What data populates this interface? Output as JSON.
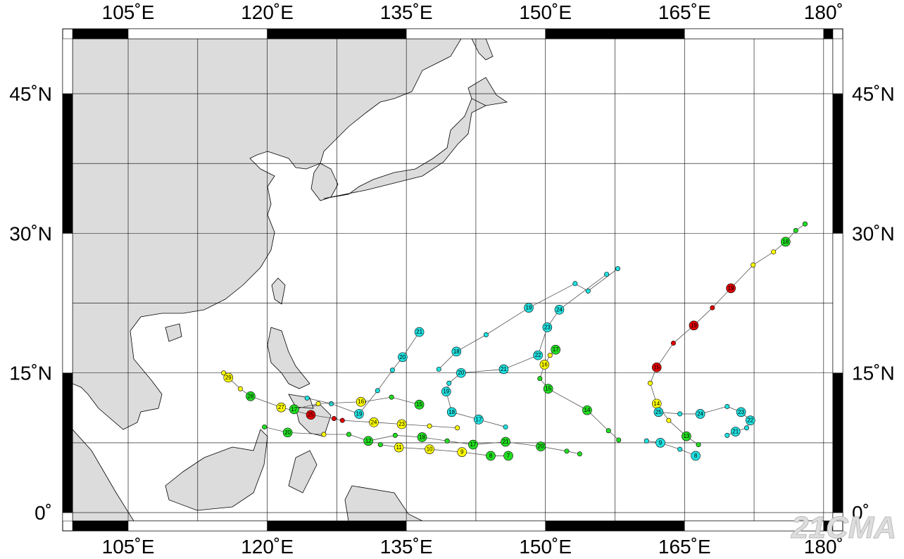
{
  "map": {
    "lon_range": [
      99,
      181
    ],
    "lat_range": [
      -0.9,
      50.9
    ],
    "grid_step": 7.5,
    "lon_ticks": [
      {
        "value": 105,
        "label": "105˚E"
      },
      {
        "value": 120,
        "label": "120˚E"
      },
      {
        "value": 135,
        "label": "135˚E"
      },
      {
        "value": 150,
        "label": "150˚E"
      },
      {
        "value": 165,
        "label": "165˚E"
      },
      {
        "value": 180,
        "label": "180˚"
      }
    ],
    "lat_ticks": [
      {
        "value": 0,
        "label": "0˚"
      },
      {
        "value": 15,
        "label": "15˚N"
      },
      {
        "value": 30,
        "label": "30˚N"
      },
      {
        "value": 45,
        "label": "45˚N"
      }
    ],
    "watermark": "21CMA",
    "colors": {
      "r": "#e00000",
      "y": "#ffff00",
      "g": "#22dd22",
      "c": "#22e0e0"
    }
  },
  "tracks": [
    {
      "points": [
        [
          178.0,
          31.0,
          "g"
        ],
        [
          177.0,
          30.3,
          "g"
        ],
        [
          175.9,
          29.1,
          "g"
        ],
        [
          174.6,
          28.0,
          "y"
        ],
        [
          172.4,
          26.6,
          "y"
        ],
        [
          170.0,
          24.1,
          "r"
        ],
        [
          168.0,
          22.0,
          "r"
        ],
        [
          166.0,
          20.1,
          "r"
        ],
        [
          163.8,
          18.2,
          "r"
        ],
        [
          162.0,
          15.6,
          "r"
        ],
        [
          161.3,
          13.9,
          "y"
        ],
        [
          162.0,
          11.7,
          "y"
        ],
        [
          163.3,
          9.9,
          "y"
        ],
        [
          165.2,
          8.2,
          "g"
        ],
        [
          166.5,
          7.3,
          "g"
        ]
      ],
      "labels": [
        {
          "i": 2,
          "text": "18"
        },
        {
          "i": 5,
          "text": "19"
        },
        {
          "i": 7,
          "text": "19"
        },
        {
          "i": 9,
          "text": "15"
        },
        {
          "i": 11,
          "text": "14"
        },
        {
          "i": 13,
          "text": "13"
        }
      ]
    },
    {
      "points": [
        [
          160.9,
          7.7,
          "c"
        ],
        [
          162.4,
          7.5,
          "c"
        ],
        [
          164.5,
          6.8,
          "c"
        ],
        [
          166.2,
          6.1,
          "c"
        ]
      ],
      "labels": [
        {
          "i": 1,
          "text": "9"
        },
        {
          "i": 3,
          "text": "8"
        }
      ]
    },
    {
      "points": [
        [
          162.2,
          10.8,
          "c"
        ],
        [
          164.5,
          10.6,
          "c"
        ],
        [
          166.7,
          10.6,
          "c"
        ],
        [
          169.6,
          11.4,
          "c"
        ],
        [
          171.1,
          10.8,
          "c"
        ],
        [
          172.1,
          9.9,
          "c"
        ],
        [
          171.7,
          9.1,
          "c"
        ],
        [
          170.5,
          8.7,
          "c"
        ],
        [
          169.6,
          8.3,
          "c"
        ]
      ],
      "labels": [
        {
          "i": 0,
          "text": "25"
        },
        {
          "i": 2,
          "text": "24"
        },
        {
          "i": 4,
          "text": "23"
        },
        {
          "i": 5,
          "text": "22"
        },
        {
          "i": 7,
          "text": "21"
        }
      ]
    },
    {
      "points": [
        [
          153.7,
          6.3,
          "g"
        ],
        [
          152.3,
          6.6,
          "g"
        ],
        [
          149.5,
          7.1,
          "g"
        ],
        [
          145.7,
          7.6,
          "g"
        ],
        [
          142.2,
          7.3,
          "g"
        ],
        [
          139.4,
          7.7,
          "g"
        ],
        [
          136.7,
          8.1,
          "g"
        ],
        [
          133.8,
          8.3,
          "g"
        ],
        [
          130.9,
          7.7,
          "g"
        ],
        [
          128.8,
          8.4,
          "g"
        ],
        [
          126.1,
          8.4,
          "y"
        ],
        [
          122.2,
          8.6,
          "g"
        ],
        [
          119.7,
          9.2,
          "g"
        ]
      ],
      "labels": [
        {
          "i": 2,
          "text": "20"
        },
        {
          "i": 3,
          "text": "21"
        },
        {
          "i": 4,
          "text": "17"
        },
        {
          "i": 6,
          "text": "18"
        },
        {
          "i": 8,
          "text": "12"
        },
        {
          "i": 11,
          "text": "20"
        }
      ]
    },
    {
      "points": [
        [
          146.0,
          6.1,
          "g"
        ],
        [
          144.1,
          6.1,
          "g"
        ],
        [
          141.0,
          6.5,
          "y"
        ],
        [
          137.5,
          6.8,
          "y"
        ],
        [
          134.2,
          7.0,
          "y"
        ],
        [
          132.2,
          7.3,
          "g"
        ]
      ],
      "labels": [
        {
          "i": 0,
          "text": "7"
        },
        {
          "i": 1,
          "text": "8"
        },
        {
          "i": 2,
          "text": "9"
        },
        {
          "i": 3,
          "text": "10"
        },
        {
          "i": 4,
          "text": "11"
        }
      ]
    },
    {
      "points": [
        [
          140.5,
          9.1,
          "y"
        ],
        [
          137.5,
          9.3,
          "y"
        ],
        [
          134.5,
          9.5,
          "y"
        ],
        [
          131.5,
          9.7,
          "y"
        ],
        [
          128.1,
          9.9,
          "r"
        ],
        [
          127.2,
          10.1,
          "r"
        ],
        [
          124.7,
          10.5,
          "r"
        ],
        [
          121.5,
          11.3,
          "y"
        ],
        [
          118.2,
          12.5,
          "g"
        ],
        [
          117.1,
          13.3,
          "y"
        ],
        [
          115.8,
          14.5,
          "y"
        ],
        [
          115.3,
          15.0,
          "y"
        ]
      ],
      "labels": [
        {
          "i": 2,
          "text": "23"
        },
        {
          "i": 3,
          "text": "24"
        },
        {
          "i": 6,
          "text": "25"
        },
        {
          "i": 7,
          "text": "27"
        },
        {
          "i": 8,
          "text": "28"
        },
        {
          "i": 10,
          "text": "29"
        }
      ]
    },
    {
      "points": [
        [
          157.8,
          26.2,
          "c"
        ],
        [
          154.6,
          23.8,
          "c"
        ],
        [
          153.2,
          24.6,
          "c"
        ],
        [
          148.2,
          22.0,
          "c"
        ],
        [
          143.6,
          19.1,
          "c"
        ],
        [
          140.4,
          17.3,
          "c"
        ],
        [
          138.5,
          15.4,
          "c"
        ]
      ],
      "labels": [
        {
          "i": 3,
          "text": "19"
        },
        {
          "i": 5,
          "text": "18"
        }
      ]
    },
    {
      "points": [
        [
          156.6,
          25.6,
          "c"
        ],
        [
          151.5,
          21.8,
          "c"
        ],
        [
          150.2,
          19.9,
          "c"
        ],
        [
          149.2,
          16.9,
          "c"
        ],
        [
          145.5,
          15.4,
          "c"
        ],
        [
          140.9,
          15.0,
          "c"
        ],
        [
          139.6,
          13.9,
          "c"
        ],
        [
          139.3,
          13.0,
          "c"
        ],
        [
          139.9,
          10.8,
          "c"
        ],
        [
          142.8,
          10.0,
          "c"
        ],
        [
          145.7,
          9.2,
          "c"
        ]
      ],
      "labels": [
        {
          "i": 1,
          "text": "24"
        },
        {
          "i": 2,
          "text": "23"
        },
        {
          "i": 3,
          "text": "22"
        },
        {
          "i": 4,
          "text": "21"
        },
        {
          "i": 5,
          "text": "20"
        },
        {
          "i": 7,
          "text": "19"
        },
        {
          "i": 8,
          "text": "18"
        },
        {
          "i": 9,
          "text": "17"
        }
      ]
    },
    {
      "points": [
        [
          136.4,
          19.4,
          "c"
        ],
        [
          134.6,
          16.7,
          "c"
        ],
        [
          133.5,
          15.3,
          "c"
        ],
        [
          131.9,
          13.1,
          "c"
        ],
        [
          129.9,
          10.6,
          "c"
        ],
        [
          126.9,
          11.7,
          "c"
        ],
        [
          124.3,
          12.3,
          "c"
        ]
      ],
      "labels": [
        {
          "i": 0,
          "text": "21"
        },
        {
          "i": 1,
          "text": "20"
        },
        {
          "i": 4,
          "text": "19"
        }
      ]
    },
    {
      "points": [
        [
          136.4,
          11.6,
          "g"
        ],
        [
          133.4,
          12.4,
          "g"
        ],
        [
          130.4,
          11.9,
          "g"
        ],
        [
          130.1,
          11.9,
          "y"
        ],
        [
          125.5,
          11.7,
          "y"
        ],
        [
          122.9,
          11.1,
          "g"
        ]
      ],
      "labels": [
        {
          "i": 0,
          "text": "15"
        },
        {
          "i": 3,
          "text": "16"
        },
        {
          "i": 5,
          "text": "17"
        }
      ]
    },
    {
      "points": [
        [
          151.1,
          17.5,
          "g"
        ],
        [
          150.5,
          16.9,
          "y"
        ],
        [
          149.9,
          15.9,
          "y"
        ],
        [
          149.4,
          14.4,
          "g"
        ],
        [
          150.3,
          13.3,
          "g"
        ],
        [
          154.5,
          11.0,
          "g"
        ],
        [
          156.8,
          8.8,
          "g"
        ],
        [
          157.9,
          7.8,
          "g"
        ]
      ],
      "labels": [
        {
          "i": 0,
          "text": "17"
        },
        {
          "i": 2,
          "text": "16"
        },
        {
          "i": 4,
          "text": "15"
        },
        {
          "i": 5,
          "text": "14"
        }
      ]
    }
  ]
}
